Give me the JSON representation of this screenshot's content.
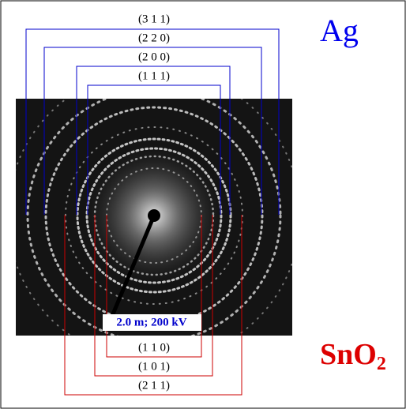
{
  "ag": {
    "label": "Ag",
    "rings": [
      "(3 1 1)",
      "(2 2 0)",
      "(2 0 0)",
      "(1 1 1)"
    ]
  },
  "sno2": {
    "label": "SnO",
    "subscript": "2",
    "rings": [
      "(1 1 0)",
      "(1 0 1)",
      "(2 1 1)"
    ]
  },
  "image": {
    "caption": "2.0 m; 200 kV"
  }
}
